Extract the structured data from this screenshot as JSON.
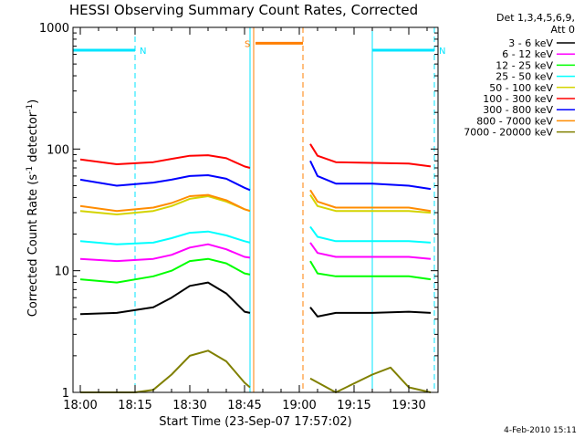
{
  "chart_data": {
    "type": "line",
    "title": "HESSI Observing Summary Count Rates, Corrected",
    "ylabel_parts": [
      "Corrected Count Rate (s",
      "-1",
      " detector",
      "-1",
      ")"
    ],
    "xlabel": "Start Time (23-Sep-07 17:57:02)",
    "yscale": "log",
    "ylim": [
      1,
      1000
    ],
    "xlim_minutes": [
      -2,
      98
    ],
    "y_ticks": [
      1,
      10,
      100,
      1000
    ],
    "y_tick_labels": [
      "1",
      "10",
      "100",
      "1000"
    ],
    "x_ticks": [
      0,
      15,
      30,
      45,
      60,
      75,
      90
    ],
    "x_tick_labels": [
      "18:00",
      "18:15",
      "18:30",
      "18:45",
      "19:00",
      "19:15",
      "19:30"
    ],
    "legend_header": [
      "Det 1,3,4,5,6,9,",
      "Att 0"
    ],
    "legend_placement": "right, outside plot",
    "data_gap_minutes": [
      47,
      63
    ],
    "night_markers": [
      {
        "label": "N",
        "start": -2,
        "end": 15,
        "color": "#00e5ff",
        "y": 650
      },
      {
        "label": "N",
        "start": 80,
        "end": 97,
        "color": "#00e5ff",
        "y": 650
      }
    ],
    "saa_marker": {
      "label": "S",
      "start": 48,
      "end": 61,
      "color": "#ff7f00",
      "y": 740
    },
    "event_lines": [
      {
        "minute": -2,
        "color": "#00e5ff",
        "style": "solid"
      },
      {
        "minute": 15,
        "color": "#00e5ff",
        "style": "dashed"
      },
      {
        "minute": 46.5,
        "color": "#00e5ff",
        "style": "solid"
      },
      {
        "minute": 47.5,
        "color": "#ff7f00",
        "style": "solid"
      },
      {
        "minute": 61,
        "color": "#ff7f00",
        "style": "dashed"
      },
      {
        "minute": 80,
        "color": "#00e5ff",
        "style": "solid"
      },
      {
        "minute": 97,
        "color": "#00e5ff",
        "style": "dashed"
      }
    ],
    "series": [
      {
        "name": "3 - 6 keV",
        "color": "#000000",
        "points": [
          [
            0,
            4.4
          ],
          [
            10,
            4.5
          ],
          [
            20,
            5.0
          ],
          [
            25,
            6.0
          ],
          [
            30,
            7.5
          ],
          [
            35,
            8.0
          ],
          [
            40,
            6.5
          ],
          [
            45,
            4.6
          ],
          [
            46.5,
            4.5
          ],
          [
            63,
            5
          ],
          [
            65,
            4.2
          ],
          [
            70,
            4.5
          ],
          [
            80,
            4.5
          ],
          [
            90,
            4.6
          ],
          [
            96,
            4.5
          ]
        ]
      },
      {
        "name": "6 - 12 keV",
        "color": "#ff00ff",
        "points": [
          [
            0,
            12.5
          ],
          [
            10,
            12.0
          ],
          [
            20,
            12.5
          ],
          [
            25,
            13.5
          ],
          [
            30,
            15.5
          ],
          [
            35,
            16.5
          ],
          [
            40,
            15.0
          ],
          [
            45,
            13.0
          ],
          [
            46.5,
            12.8
          ],
          [
            63,
            17
          ],
          [
            65,
            14
          ],
          [
            70,
            13
          ],
          [
            80,
            13
          ],
          [
            90,
            13
          ],
          [
            96,
            12.5
          ]
        ]
      },
      {
        "name": "12 - 25 keV",
        "color": "#00ff00",
        "points": [
          [
            0,
            8.5
          ],
          [
            10,
            8.0
          ],
          [
            20,
            9.0
          ],
          [
            25,
            10.0
          ],
          [
            30,
            12.0
          ],
          [
            35,
            12.5
          ],
          [
            40,
            11.5
          ],
          [
            45,
            9.5
          ],
          [
            46.5,
            9.3
          ],
          [
            63,
            12
          ],
          [
            65,
            9.5
          ],
          [
            70,
            9
          ],
          [
            80,
            9
          ],
          [
            90,
            9
          ],
          [
            96,
            8.5
          ]
        ]
      },
      {
        "name": "25 - 50 keV",
        "color": "#00ffff",
        "points": [
          [
            0,
            17.5
          ],
          [
            10,
            16.5
          ],
          [
            20,
            17.0
          ],
          [
            25,
            18.5
          ],
          [
            30,
            20.5
          ],
          [
            35,
            21.0
          ],
          [
            40,
            19.5
          ],
          [
            45,
            17.5
          ],
          [
            46.5,
            17
          ],
          [
            63,
            23
          ],
          [
            65,
            19
          ],
          [
            70,
            17.5
          ],
          [
            80,
            17.5
          ],
          [
            90,
            17.5
          ],
          [
            96,
            17
          ]
        ]
      },
      {
        "name": "50 - 100 keV",
        "color": "#d4d400",
        "points": [
          [
            0,
            31
          ],
          [
            10,
            29
          ],
          [
            20,
            31
          ],
          [
            25,
            34
          ],
          [
            30,
            39
          ],
          [
            35,
            41
          ],
          [
            40,
            37
          ],
          [
            45,
            32
          ],
          [
            46.5,
            31
          ],
          [
            63,
            42
          ],
          [
            65,
            34
          ],
          [
            70,
            31
          ],
          [
            80,
            31
          ],
          [
            90,
            31
          ],
          [
            96,
            30
          ]
        ]
      },
      {
        "name": "100 - 300 keV",
        "color": "#ff0000",
        "points": [
          [
            0,
            82
          ],
          [
            10,
            75
          ],
          [
            20,
            78
          ],
          [
            25,
            83
          ],
          [
            30,
            88
          ],
          [
            35,
            89
          ],
          [
            40,
            84
          ],
          [
            45,
            72
          ],
          [
            46.5,
            70
          ],
          [
            63,
            110
          ],
          [
            65,
            88
          ],
          [
            70,
            78
          ],
          [
            80,
            77
          ],
          [
            90,
            76
          ],
          [
            96,
            72
          ]
        ]
      },
      {
        "name": "300 - 800 keV",
        "color": "#0000ff",
        "points": [
          [
            0,
            56
          ],
          [
            10,
            50
          ],
          [
            20,
            53
          ],
          [
            25,
            56
          ],
          [
            30,
            60
          ],
          [
            35,
            61
          ],
          [
            40,
            57
          ],
          [
            45,
            48
          ],
          [
            46.5,
            46
          ],
          [
            63,
            80
          ],
          [
            65,
            60
          ],
          [
            70,
            52
          ],
          [
            80,
            52
          ],
          [
            90,
            50
          ],
          [
            96,
            47
          ]
        ]
      },
      {
        "name": "800 - 7000 keV",
        "color": "#ff8c00",
        "points": [
          [
            0,
            34
          ],
          [
            10,
            31
          ],
          [
            20,
            33
          ],
          [
            25,
            36
          ],
          [
            30,
            41
          ],
          [
            35,
            42
          ],
          [
            40,
            38
          ],
          [
            45,
            32
          ],
          [
            46.5,
            31
          ],
          [
            63,
            46
          ],
          [
            65,
            37
          ],
          [
            70,
            33
          ],
          [
            80,
            33
          ],
          [
            90,
            33
          ],
          [
            96,
            31
          ]
        ]
      },
      {
        "name": "7000 - 20000 keV",
        "color": "#808000",
        "points": [
          [
            0,
            1
          ],
          [
            15,
            1
          ],
          [
            20,
            1.05
          ],
          [
            25,
            1.4
          ],
          [
            30,
            2.0
          ],
          [
            35,
            2.2
          ],
          [
            40,
            1.8
          ],
          [
            45,
            1.2
          ],
          [
            46.5,
            1.1
          ],
          [
            63,
            1.3
          ],
          [
            70,
            1.0
          ],
          [
            80,
            1.4
          ],
          [
            85,
            1.6
          ],
          [
            90,
            1.1
          ],
          [
            96,
            1.0
          ]
        ]
      }
    ]
  },
  "footer": {
    "date_stamp": "4-Feb-2010 15:11"
  }
}
